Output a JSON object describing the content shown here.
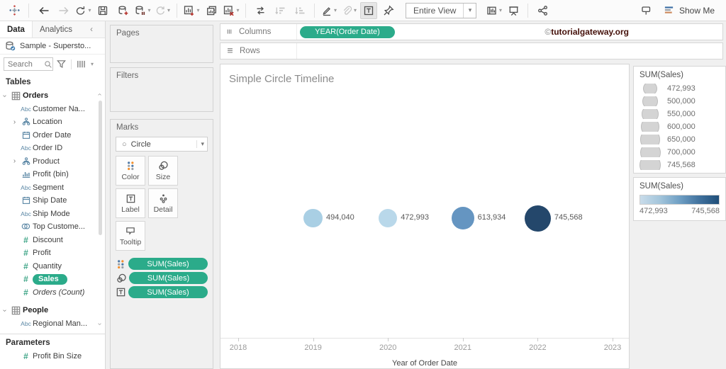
{
  "glyphs": {
    "caret": "▾",
    "circle": "○",
    "chevron": "›"
  },
  "toolbar": {
    "items": [
      {
        "name": "tableau-logo-icon",
        "icon": "logo"
      },
      {
        "name": "toolbar-sep",
        "type": "sep"
      },
      {
        "name": "undo-icon",
        "icon": "arrow-left"
      },
      {
        "name": "redo-icon",
        "icon": "arrow-right",
        "disabled": true
      },
      {
        "name": "replay-icon",
        "icon": "replay",
        "caret": true
      },
      {
        "name": "save-icon",
        "icon": "save"
      },
      {
        "name": "new-datasource-icon",
        "icon": "ds-add"
      },
      {
        "name": "pause-updates-icon",
        "icon": "ds-pause",
        "caret": true
      },
      {
        "name": "run-update-icon",
        "icon": "refresh",
        "disabled": true,
        "caret": true
      },
      {
        "name": "toolbar-sep",
        "type": "sep"
      },
      {
        "name": "new-worksheet-icon",
        "icon": "sheet-add",
        "caret": true
      },
      {
        "name": "duplicate-sheet-icon",
        "icon": "duplicate"
      },
      {
        "name": "clear-sheet-icon",
        "icon": "sheet-clear",
        "caret": true
      },
      {
        "name": "toolbar-sep",
        "type": "sep"
      },
      {
        "name": "swap-rows-columns-icon",
        "icon": "swap"
      },
      {
        "name": "sort-ascending-icon",
        "icon": "sort-asc",
        "disabled": true
      },
      {
        "name": "sort-descending-icon",
        "icon": "sort-desc",
        "disabled": true
      },
      {
        "name": "toolbar-sep",
        "type": "sep"
      },
      {
        "name": "highlight-icon",
        "icon": "highlight",
        "caret": true
      },
      {
        "name": "group-members-icon",
        "icon": "paperclip",
        "disabled": true,
        "caret": true
      },
      {
        "name": "show-mark-labels-icon",
        "icon": "label-t",
        "active": true
      },
      {
        "name": "fix-axes-icon",
        "icon": "pin"
      },
      {
        "name": "fit-dropdown",
        "type": "fit",
        "label": "Entire View"
      },
      {
        "name": "show-hide-cards-icon",
        "icon": "cards",
        "caret": true
      },
      {
        "name": "presentation-mode-icon",
        "icon": "presentation"
      },
      {
        "name": "toolbar-sep",
        "type": "sep"
      },
      {
        "name": "share-icon",
        "icon": "share"
      },
      {
        "name": "toolbar-spacer",
        "type": "spacer"
      },
      {
        "name": "tooltip-flag-icon",
        "icon": "tooltip-flag"
      },
      {
        "name": "show-me-button",
        "type": "showme",
        "label": "Show Me"
      }
    ]
  },
  "watermark": {
    "symbol": "©",
    "text": "tutorialgateway.org"
  },
  "sidebar": {
    "tabs": [
      {
        "label": "Data"
      },
      {
        "label": "Analytics"
      }
    ],
    "datasource": "Sample - Supersto...",
    "search_placeholder": "Search",
    "tables_label": "Tables",
    "fields": [
      {
        "icon": "table",
        "name": "Orders",
        "bold": true,
        "expand": "down"
      },
      {
        "icon": "abc",
        "name": "Customer Na..."
      },
      {
        "icon": "hier",
        "name": "Location",
        "expand": "right"
      },
      {
        "icon": "cal",
        "name": "Order Date"
      },
      {
        "icon": "abc",
        "name": "Order ID"
      },
      {
        "icon": "hier",
        "name": "Product",
        "expand": "right"
      },
      {
        "icon": "bin",
        "name": "Profit (bin)"
      },
      {
        "icon": "abc",
        "name": "Segment"
      },
      {
        "icon": "cal",
        "name": "Ship Date"
      },
      {
        "icon": "abc",
        "name": "Ship Mode"
      },
      {
        "icon": "set",
        "name": "Top Custome..."
      },
      {
        "icon": "hash",
        "name": "Discount"
      },
      {
        "icon": "hash",
        "name": "Profit"
      },
      {
        "icon": "hash",
        "name": "Quantity"
      },
      {
        "icon": "hash",
        "name": "Sales",
        "selected": true
      },
      {
        "icon": "hash",
        "name": "Orders (Count)",
        "italic": true
      },
      {
        "icon": "table",
        "name": "People",
        "bold": true,
        "expand": "down",
        "gap": true
      },
      {
        "icon": "abc",
        "name": "Regional Man..."
      }
    ],
    "parameters_label": "Parameters",
    "parameters": [
      {
        "icon": "hash",
        "name": "Profit Bin Size"
      }
    ]
  },
  "cards": {
    "pages_label": "Pages",
    "filters_label": "Filters",
    "marks_label": "Marks",
    "mark_type": "Circle",
    "mark_buttons": [
      {
        "icon": "color-dots",
        "label": "Color"
      },
      {
        "icon": "size-circles",
        "label": "Size"
      },
      {
        "icon": "label-t-sm",
        "label": "Label"
      },
      {
        "icon": "detail-dots",
        "label": "Detail"
      },
      {
        "icon": "tooltip-bubble",
        "label": "Tooltip"
      }
    ],
    "mark_pills": [
      {
        "icon": "color-dots",
        "label": "SUM(Sales)"
      },
      {
        "icon": "size-circles",
        "label": "SUM(Sales)"
      },
      {
        "icon": "label-t-sm",
        "label": "SUM(Sales)"
      }
    ]
  },
  "shelves": {
    "columns_label": "Columns",
    "columns_pills": [
      "YEAR(Order Date)"
    ],
    "rows_label": "Rows",
    "rows_pills": []
  },
  "chart_data": {
    "type": "scatter",
    "title": "Simple Circle Timeline",
    "x": [
      2019,
      2020,
      2021,
      2022
    ],
    "values": [
      494040,
      472993,
      613934,
      745568
    ],
    "value_labels": [
      "494,040",
      "472,993",
      "613,934",
      "745,568"
    ],
    "colors": [
      "#a9cfe4",
      "#b9d8ea",
      "#6595c1",
      "#24476b"
    ],
    "xlabel": "Year of Order Date",
    "x_ticks": [
      "2018",
      "2019",
      "2020",
      "2021",
      "2022",
      "2023"
    ],
    "xlim": [
      2018,
      2023
    ],
    "size_encoding": "SUM(Sales)",
    "color_encoding": "SUM(Sales)",
    "legend_position": "right",
    "grid": false
  },
  "legends": {
    "size": {
      "title": "SUM(Sales)",
      "items": [
        "472,993",
        "500,000",
        "550,000",
        "600,000",
        "650,000",
        "700,000",
        "745,568"
      ]
    },
    "color": {
      "title": "SUM(Sales)",
      "min": "472,993",
      "max": "745,568",
      "gradient_from": "#c9dcea",
      "gradient_to": "#1f4e79"
    }
  }
}
